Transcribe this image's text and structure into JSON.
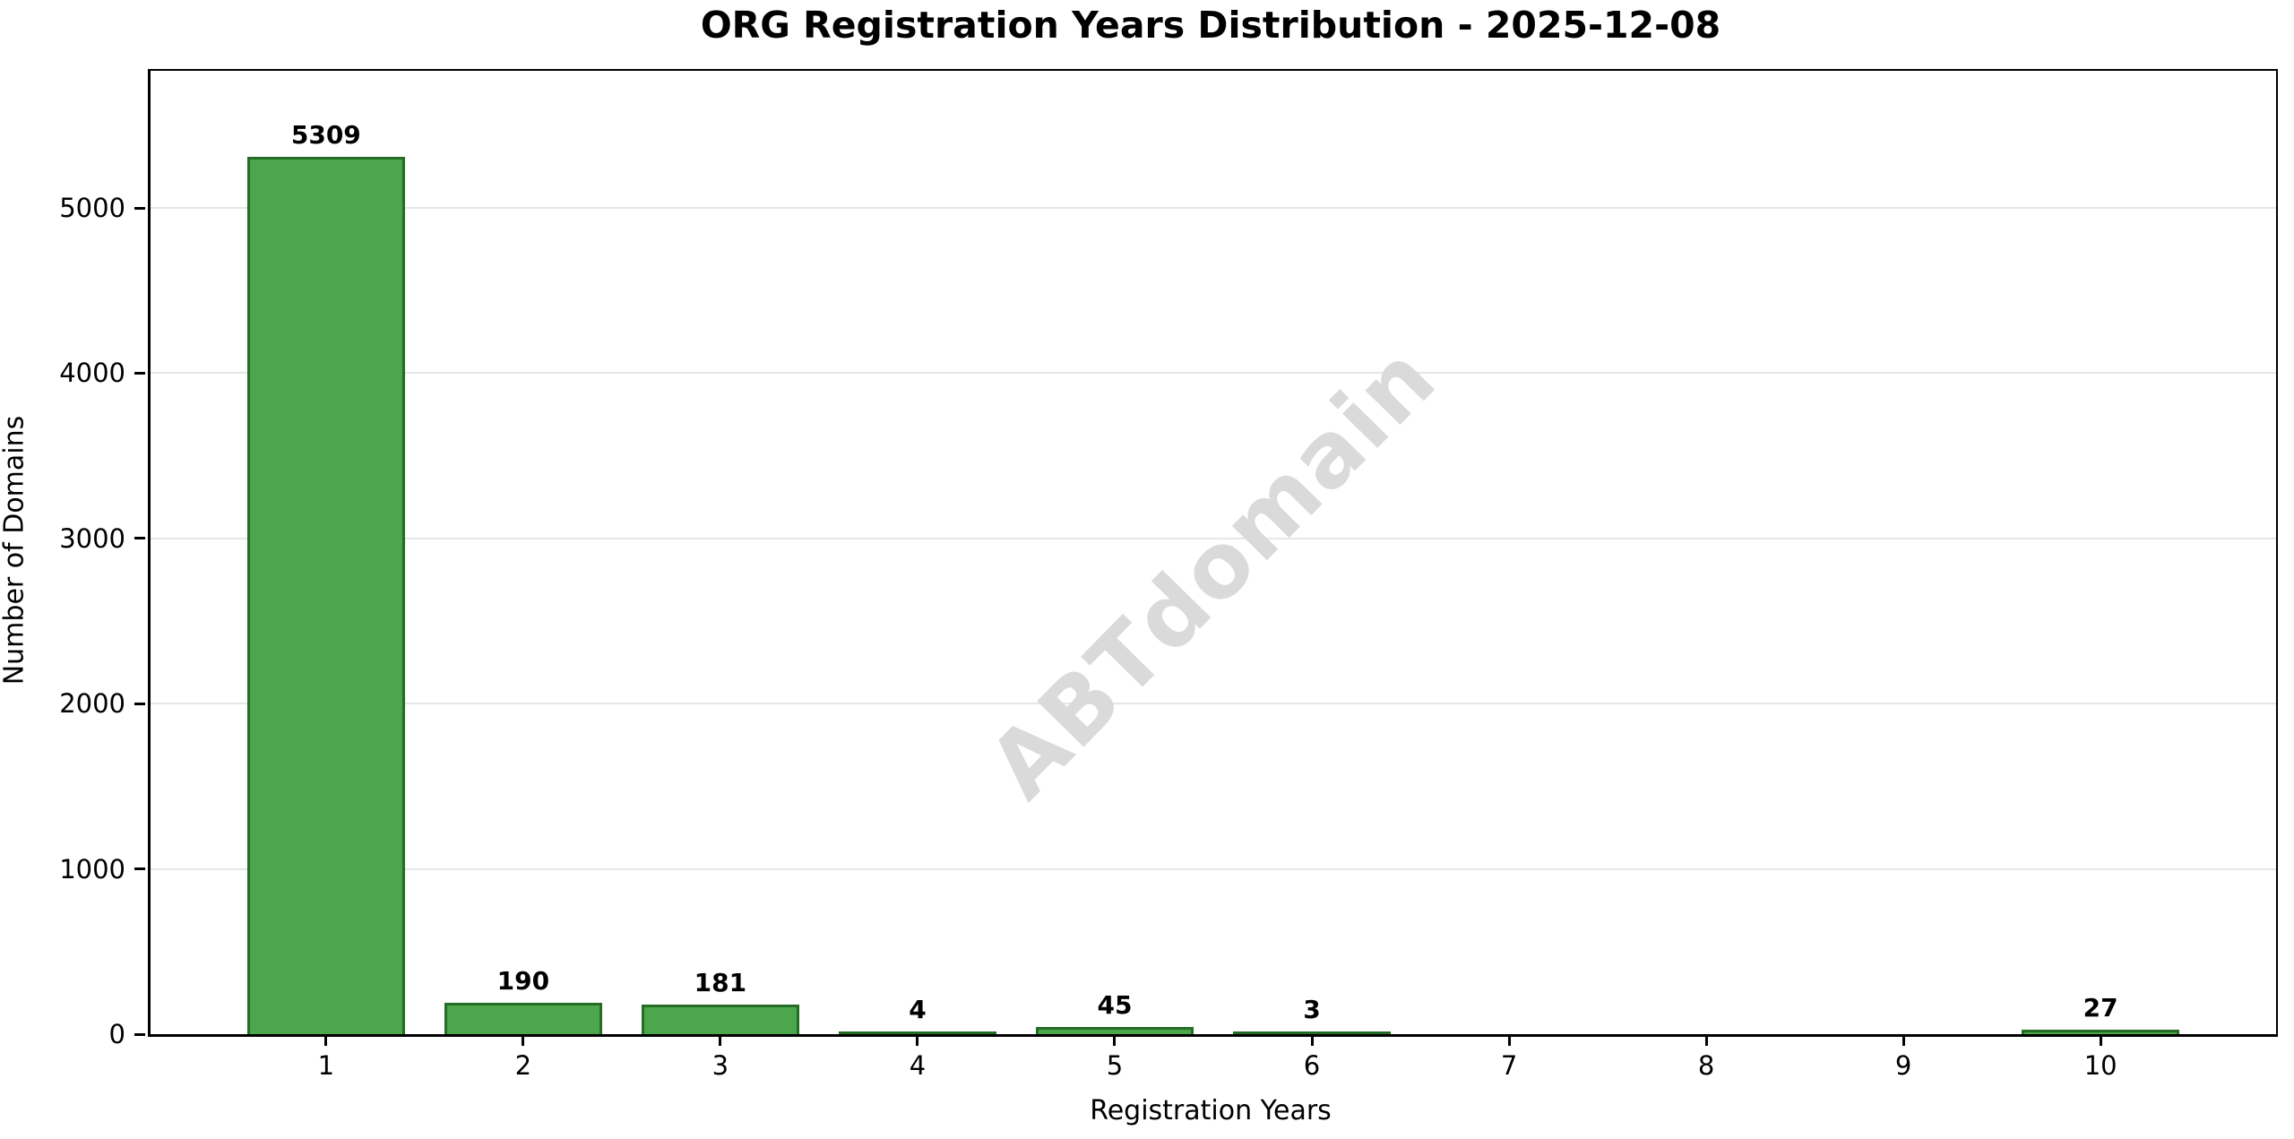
{
  "chart_data": {
    "type": "bar",
    "title": "ORG Registration Years Distribution - 2025-12-08",
    "xlabel": "Registration Years",
    "ylabel": "Number of Domains",
    "categories": [
      1,
      2,
      3,
      4,
      5,
      6,
      7,
      8,
      9,
      10
    ],
    "values": [
      5309,
      190,
      181,
      4,
      45,
      3,
      0,
      0,
      0,
      27
    ],
    "bar_labels": [
      "5309",
      "190",
      "181",
      "4",
      "45",
      "3",
      "",
      "",
      "",
      "27"
    ],
    "yticks": [
      0,
      1000,
      2000,
      3000,
      4000,
      5000
    ],
    "xlim": [
      0.11,
      10.89
    ],
    "ylim": [
      0,
      5830
    ],
    "bar_width_units": 0.8,
    "grid": "horizontal",
    "legend_position": "none",
    "colors": {
      "bar_fill": "#4CA64C",
      "bar_edge": "#256D25",
      "gridline": "#e6e6e6",
      "text": "#000000",
      "watermark": "#dadada"
    },
    "watermark_text": "ABTdomain"
  }
}
